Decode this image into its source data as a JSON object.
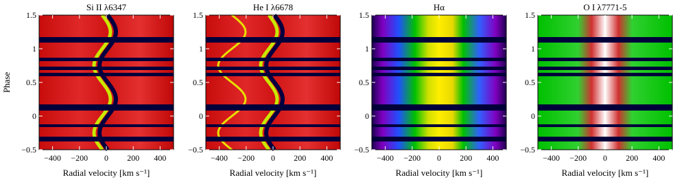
{
  "chart_data": [
    {
      "type": "heatmap",
      "title": "Si II λ6347",
      "xlabel": "Radial velocity [km s⁻¹]",
      "ylabel": "Phase",
      "xlim": [
        -500,
        500
      ],
      "ylim": [
        -0.5,
        1.5
      ],
      "xticks": [
        {
          "value": -400,
          "label": "−400"
        },
        {
          "value": -200,
          "label": "−200"
        },
        0,
        200,
        400
      ],
      "yticks": [
        {
          "value": -0.5,
          "label": "−0.5"
        },
        0,
        0.5,
        1,
        1.5
      ]
    },
    {
      "type": "heatmap",
      "title": "He I λ6678",
      "xlabel": "Radial velocity [km s⁻¹]",
      "xlim": [
        -500,
        500
      ],
      "ylim": [
        -0.5,
        1.5
      ],
      "xticks": [
        {
          "value": -400,
          "label": "−400"
        },
        {
          "value": -200,
          "label": "−200"
        },
        0,
        200,
        400
      ],
      "yticks": [
        {
          "value": -0.5,
          "label": "−0.5"
        },
        0,
        0.5,
        1,
        1.5
      ]
    },
    {
      "type": "heatmap",
      "title": "Hα",
      "xlabel": "Radial velocity [km s⁻¹]",
      "xlim": [
        -500,
        500
      ],
      "ylim": [
        -0.5,
        1.5
      ],
      "xticks": [
        {
          "value": -400,
          "label": "−400"
        },
        {
          "value": -200,
          "label": "−200"
        },
        0,
        200,
        400
      ],
      "yticks": [
        {
          "value": -0.5,
          "label": "−0.5"
        },
        0,
        0.5,
        1,
        1.5
      ]
    },
    {
      "type": "heatmap",
      "title": "O I λ7771-5",
      "xlabel": "Radial velocity [km s⁻¹]",
      "xlim": [
        -500,
        500
      ],
      "ylim": [
        -0.5,
        1.5
      ],
      "xticks": [
        {
          "value": -400,
          "label": "−400"
        },
        {
          "value": -200,
          "label": "−200"
        },
        0,
        200,
        400
      ],
      "yticks": [
        {
          "value": -0.5,
          "label": "−0.5"
        },
        0,
        0.5,
        1,
        1.5
      ]
    }
  ]
}
